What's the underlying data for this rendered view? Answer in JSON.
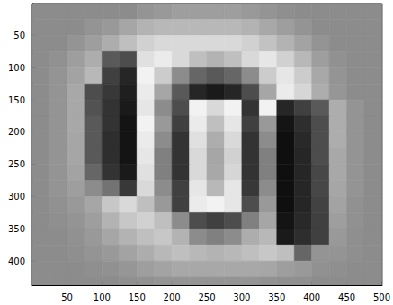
{
  "chart_data": {
    "type": "heatmap",
    "x": [
      12.5,
      37.5,
      62.5,
      87.5,
      112.5,
      137.5,
      162.5,
      187.5,
      212.5,
      237.5,
      262.5,
      287.5,
      312.5,
      337.5,
      362.5,
      387.5,
      412.5,
      437.5,
      462.5,
      487.5
    ],
    "y": [
      12.5,
      37.5,
      62.5,
      87.5,
      112.5,
      137.5,
      162.5,
      187.5,
      212.5,
      237.5,
      262.5,
      287.5,
      312.5,
      337.5,
      362.5,
      387.5,
      412.5,
      437.5
    ],
    "cells": [
      [
        55,
        55,
        55,
        55,
        55,
        55,
        58,
        60,
        62,
        62,
        62,
        62,
        60,
        58,
        56,
        55,
        55,
        55,
        55,
        55
      ],
      [
        55,
        55,
        55,
        58,
        60,
        65,
        70,
        72,
        72,
        72,
        72,
        72,
        70,
        66,
        62,
        58,
        55,
        55,
        55,
        55
      ],
      [
        55,
        55,
        58,
        62,
        68,
        75,
        82,
        85,
        85,
        85,
        85,
        85,
        82,
        76,
        70,
        64,
        58,
        55,
        55,
        55
      ],
      [
        55,
        57,
        62,
        68,
        35,
        30,
        88,
        92,
        85,
        75,
        70,
        75,
        85,
        90,
        82,
        72,
        62,
        57,
        55,
        55
      ],
      [
        55,
        58,
        64,
        72,
        25,
        15,
        95,
        80,
        55,
        40,
        35,
        40,
        55,
        80,
        90,
        80,
        66,
        58,
        55,
        55
      ],
      [
        55,
        58,
        66,
        30,
        22,
        12,
        92,
        65,
        35,
        15,
        10,
        15,
        30,
        65,
        92,
        84,
        68,
        59,
        55,
        55
      ],
      [
        55,
        58,
        66,
        32,
        20,
        10,
        90,
        55,
        30,
        95,
        85,
        95,
        20,
        95,
        15,
        25,
        35,
        68,
        58,
        55
      ],
      [
        55,
        58,
        66,
        35,
        20,
        8,
        95,
        60,
        25,
        92,
        75,
        90,
        25,
        60,
        8,
        18,
        30,
        68,
        58,
        55
      ],
      [
        55,
        58,
        65,
        35,
        18,
        8,
        92,
        55,
        20,
        88,
        68,
        85,
        20,
        55,
        6,
        16,
        30,
        68,
        58,
        55
      ],
      [
        55,
        58,
        65,
        35,
        18,
        8,
        90,
        50,
        20,
        85,
        65,
        82,
        20,
        50,
        6,
        15,
        30,
        66,
        58,
        55
      ],
      [
        55,
        58,
        64,
        40,
        20,
        10,
        88,
        50,
        20,
        85,
        66,
        84,
        20,
        50,
        6,
        15,
        28,
        66,
        58,
        55
      ],
      [
        55,
        58,
        62,
        55,
        45,
        22,
        85,
        55,
        25,
        90,
        72,
        90,
        22,
        55,
        6,
        15,
        28,
        65,
        58,
        55
      ],
      [
        55,
        57,
        60,
        65,
        78,
        85,
        75,
        60,
        25,
        92,
        95,
        90,
        30,
        60,
        6,
        15,
        26,
        64,
        57,
        55
      ],
      [
        55,
        56,
        58,
        62,
        70,
        78,
        82,
        75,
        55,
        30,
        25,
        30,
        50,
        65,
        8,
        16,
        25,
        62,
        57,
        55
      ],
      [
        55,
        55,
        57,
        60,
        65,
        70,
        75,
        78,
        70,
        55,
        50,
        55,
        68,
        72,
        10,
        18,
        25,
        60,
        56,
        55
      ],
      [
        55,
        55,
        56,
        58,
        60,
        64,
        68,
        72,
        75,
        72,
        70,
        72,
        75,
        78,
        75,
        40,
        58,
        58,
        56,
        55
      ],
      [
        55,
        55,
        55,
        56,
        57,
        59,
        62,
        64,
        66,
        66,
        66,
        66,
        66,
        65,
        62,
        60,
        57,
        56,
        55,
        55
      ],
      [
        55,
        55,
        55,
        55,
        55,
        56,
        57,
        58,
        58,
        58,
        58,
        58,
        58,
        57,
        56,
        56,
        55,
        55,
        55,
        55
      ]
    ],
    "color_range": [
      0,
      100
    ],
    "xlim": [
      0.5,
      500.5
    ],
    "xticks": [
      50,
      100,
      150,
      200,
      250,
      300,
      350,
      400,
      450,
      500
    ],
    "ylim": [
      0.5,
      437.5
    ],
    "yticks": [
      50,
      100,
      150,
      200,
      250,
      300,
      350,
      400
    ],
    "grid": false
  }
}
